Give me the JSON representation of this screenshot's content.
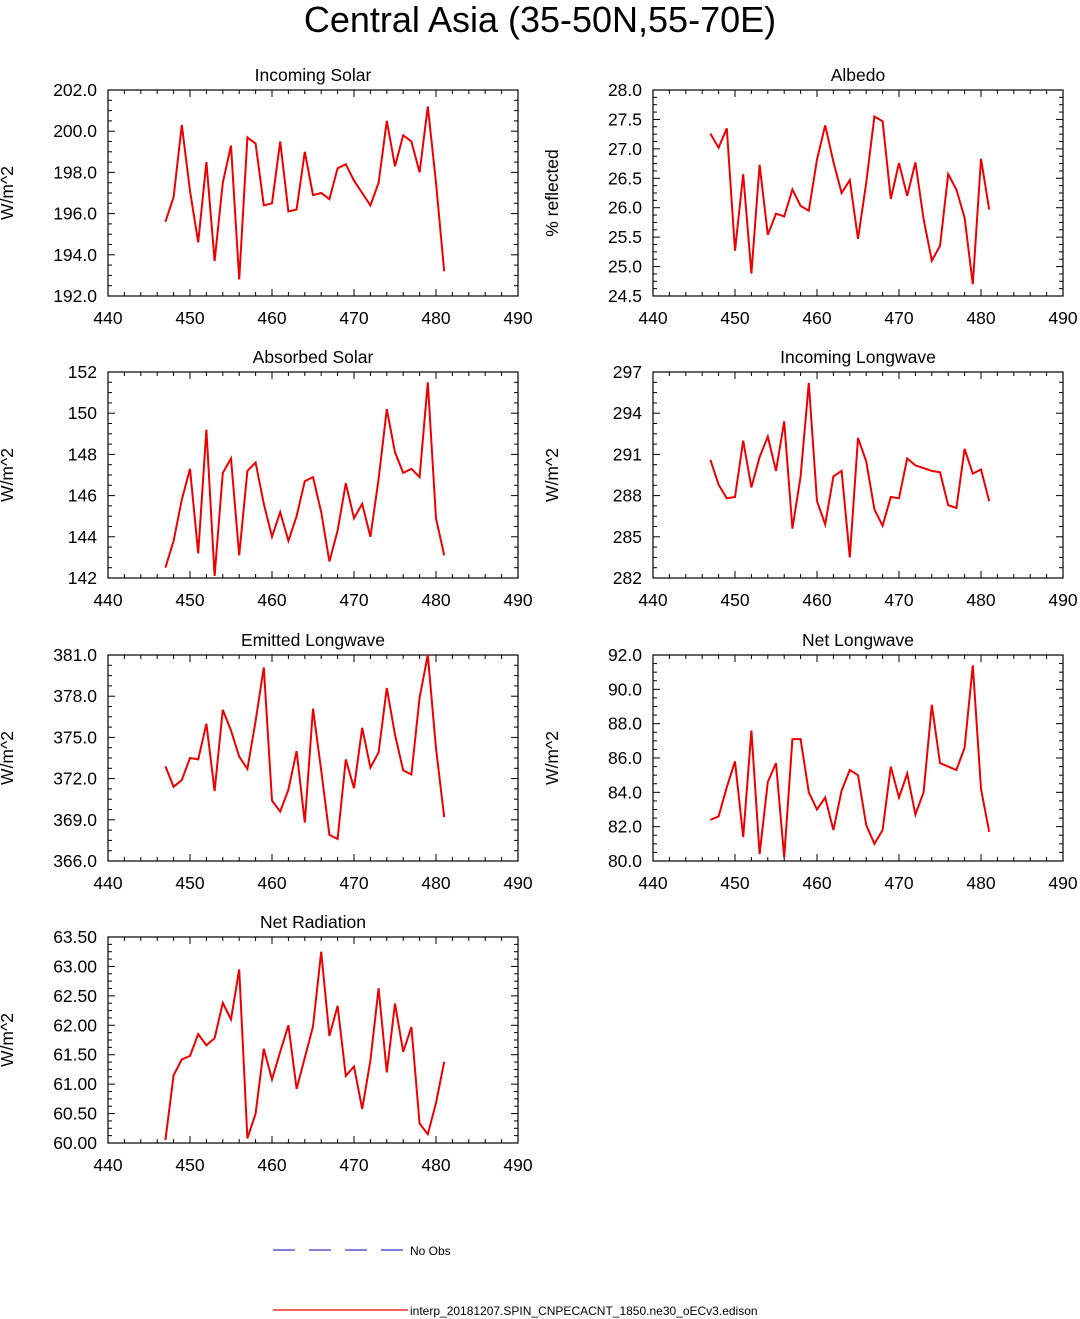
{
  "title": "Central Asia (35-50N,55-70E)",
  "series_color": "#ee0000",
  "obs_color": "#3333cc",
  "legend": {
    "obs_label": "No Obs",
    "model_label": "interp_20181207.SPIN_CNPECACNT_1850.ne30_oECv3.edison"
  },
  "chart_data": [
    {
      "type": "line",
      "title": "Incoming Solar",
      "ylabel": "W/m^2",
      "xlabel": "",
      "xlim": [
        440,
        490
      ],
      "xticks": [
        "440",
        "450",
        "460",
        "470",
        "480",
        "490"
      ],
      "ylim": [
        192,
        202
      ],
      "yticks": [
        "192.0",
        "194.0",
        "196.0",
        "198.0",
        "200.0",
        "202.0"
      ],
      "x_start": 447,
      "values": [
        195.6,
        196.8,
        200.3,
        197.1,
        194.6,
        198.5,
        193.7,
        197.5,
        199.3,
        192.8,
        199.7,
        199.4,
        196.4,
        196.5,
        199.5,
        196.1,
        196.2,
        199.0,
        196.9,
        197.0,
        196.7,
        198.2,
        198.4,
        197.6,
        197.0,
        196.4,
        197.5,
        200.5,
        198.3,
        199.8,
        199.5,
        198.0,
        201.2,
        197.5,
        193.2
      ],
      "series": [
        {
          "name": "interp_20181207.SPIN_CNPECACNT_1850.ne30_oECv3.edison"
        }
      ]
    },
    {
      "type": "line",
      "title": "Albedo",
      "ylabel": "% reflected",
      "xlabel": "",
      "xlim": [
        440,
        490
      ],
      "xticks": [
        "440",
        "450",
        "460",
        "470",
        "480",
        "490"
      ],
      "ylim": [
        24.5,
        28.0
      ],
      "yticks": [
        "24.5",
        "25.0",
        "25.5",
        "26.0",
        "26.5",
        "27.0",
        "27.5",
        "28.0"
      ],
      "x_start": 447,
      "values": [
        27.26,
        27.02,
        27.35,
        25.27,
        26.57,
        24.88,
        26.73,
        25.54,
        25.9,
        25.85,
        26.31,
        26.03,
        25.95,
        26.82,
        27.4,
        26.78,
        26.25,
        26.47,
        25.47,
        26.42,
        27.55,
        27.47,
        26.15,
        26.76,
        26.2,
        26.77,
        25.81,
        25.1,
        25.35,
        26.57,
        26.31,
        25.83,
        24.7,
        26.83,
        25.97
      ],
      "series": [
        {
          "name": "interp_20181207.SPIN_CNPECACNT_1850.ne30_oECv3.edison"
        }
      ]
    },
    {
      "type": "line",
      "title": "Absorbed Solar",
      "ylabel": "W/m^2",
      "xlabel": "",
      "xlim": [
        440,
        490
      ],
      "xticks": [
        "440",
        "450",
        "460",
        "470",
        "480",
        "490"
      ],
      "ylim": [
        142,
        152
      ],
      "yticks": [
        "142",
        "144",
        "146",
        "148",
        "150",
        "152"
      ],
      "x_start": 447,
      "values": [
        142.5,
        143.8,
        145.8,
        147.3,
        143.2,
        149.2,
        142.1,
        147.1,
        147.8,
        143.1,
        147.2,
        147.6,
        145.6,
        144.0,
        145.2,
        143.8,
        145.0,
        146.7,
        146.9,
        145.2,
        142.8,
        144.3,
        146.6,
        144.9,
        145.6,
        144.0,
        146.8,
        150.2,
        148.1,
        147.1,
        147.3,
        146.9,
        151.5,
        144.9,
        143.1
      ],
      "series": [
        {
          "name": "interp_20181207.SPIN_CNPECACNT_1850.ne30_oECv3.edison"
        }
      ]
    },
    {
      "type": "line",
      "title": "Incoming Longwave",
      "ylabel": "W/m^2",
      "xlabel": "",
      "xlim": [
        440,
        490
      ],
      "xticks": [
        "440",
        "450",
        "460",
        "470",
        "480",
        "490"
      ],
      "ylim": [
        282,
        297
      ],
      "yticks": [
        "282",
        "285",
        "288",
        "291",
        "294",
        "297"
      ],
      "x_start": 447,
      "values": [
        290.6,
        288.8,
        287.8,
        287.9,
        292.0,
        288.6,
        290.8,
        292.3,
        289.8,
        293.4,
        285.6,
        289.4,
        296.2,
        287.6,
        285.9,
        289.4,
        289.8,
        283.5,
        292.2,
        290.5,
        287.0,
        285.8,
        287.9,
        287.8,
        290.7,
        290.2,
        290.0,
        289.8,
        289.7,
        287.3,
        287.1,
        291.4,
        289.6,
        289.9,
        287.6
      ],
      "series": [
        {
          "name": "interp_20181207.SPIN_CNPECACNT_1850.ne30_oECv3.edison"
        }
      ]
    },
    {
      "type": "line",
      "title": "Emitted Longwave",
      "ylabel": "W/m^2",
      "xlabel": "",
      "xlim": [
        440,
        490
      ],
      "xticks": [
        "440",
        "450",
        "460",
        "470",
        "480",
        "490"
      ],
      "ylim": [
        366,
        381
      ],
      "yticks": [
        "366.0",
        "369.0",
        "372.0",
        "375.0",
        "378.0",
        "381.0"
      ],
      "x_start": 447,
      "values": [
        372.9,
        371.4,
        371.9,
        373.5,
        373.4,
        376.0,
        371.1,
        377.0,
        375.5,
        373.6,
        372.7,
        376.2,
        380.1,
        370.4,
        369.6,
        371.2,
        374.0,
        368.8,
        377.1,
        372.6,
        367.9,
        367.6,
        373.4,
        371.3,
        375.7,
        372.8,
        373.9,
        378.6,
        375.2,
        372.6,
        372.3,
        377.9,
        381.0,
        374.2,
        369.2
      ],
      "series": [
        {
          "name": "interp_20181207.SPIN_CNPECACNT_1850.ne30_oECv3.edison"
        }
      ]
    },
    {
      "type": "line",
      "title": "Net Longwave",
      "ylabel": "W/m^2",
      "xlabel": "",
      "xlim": [
        440,
        490
      ],
      "xticks": [
        "440",
        "450",
        "460",
        "470",
        "480",
        "490"
      ],
      "ylim": [
        80,
        92
      ],
      "yticks": [
        "80.0",
        "82.0",
        "84.0",
        "86.0",
        "88.0",
        "90.0",
        "92.0"
      ],
      "x_start": 447,
      "values": [
        82.4,
        82.6,
        84.3,
        85.8,
        81.4,
        87.6,
        80.4,
        84.6,
        85.7,
        80.2,
        87.1,
        87.1,
        84.0,
        83.0,
        83.7,
        81.8,
        84.1,
        85.3,
        85.0,
        82.1,
        81.0,
        81.8,
        85.5,
        83.7,
        85.1,
        82.7,
        84.0,
        89.1,
        85.7,
        85.5,
        85.3,
        86.6,
        91.4,
        84.2,
        81.7
      ],
      "series": [
        {
          "name": "interp_20181207.SPIN_CNPECACNT_1850.ne30_oECv3.edison"
        }
      ]
    },
    {
      "type": "line",
      "title": "Net Radiation",
      "ylabel": "W/m^2",
      "xlabel": "",
      "xlim": [
        440,
        490
      ],
      "xticks": [
        "440",
        "450",
        "460",
        "470",
        "480",
        "490"
      ],
      "ylim": [
        60,
        63.5
      ],
      "yticks": [
        "60.00",
        "60.50",
        "61.00",
        "61.50",
        "62.00",
        "62.50",
        "63.00",
        "63.50"
      ],
      "x_start": 447,
      "values": [
        60.05,
        61.15,
        61.42,
        61.48,
        61.85,
        61.66,
        61.78,
        62.38,
        62.1,
        62.95,
        60.08,
        60.5,
        61.6,
        61.08,
        61.55,
        62.0,
        60.92,
        61.45,
        61.98,
        63.25,
        61.82,
        62.33,
        61.14,
        61.3,
        60.58,
        61.4,
        62.63,
        61.2,
        62.37,
        61.55,
        61.97,
        60.33,
        60.15,
        60.68,
        61.38
      ],
      "series": [
        {
          "name": "interp_20181207.SPIN_CNPECACNT_1850.ne30_oECv3.edison"
        }
      ]
    }
  ]
}
